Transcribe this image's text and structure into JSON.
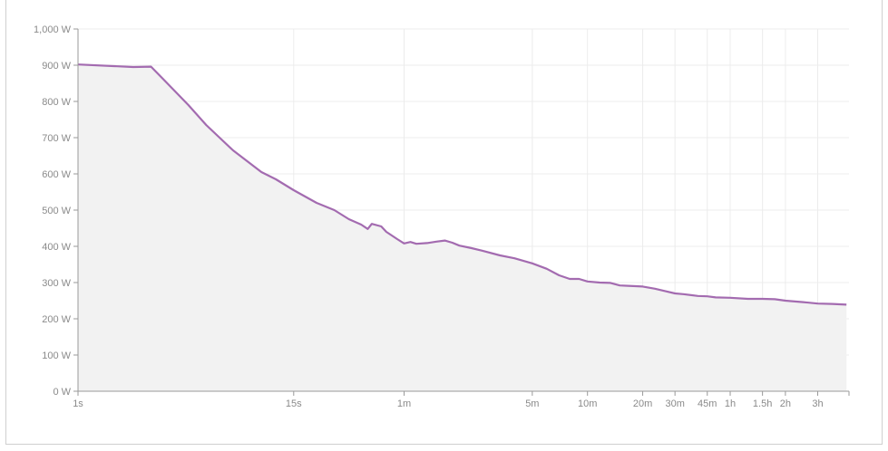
{
  "chart_data": {
    "type": "area",
    "title": "",
    "xlabel": "",
    "ylabel": "",
    "x_scale": "log",
    "ylim": [
      0,
      1000
    ],
    "xlim_seconds": [
      1,
      16000
    ],
    "y_ticks": [
      {
        "value": 0,
        "label": "0 W"
      },
      {
        "value": 100,
        "label": "100 W"
      },
      {
        "value": 200,
        "label": "200 W"
      },
      {
        "value": 300,
        "label": "300 W"
      },
      {
        "value": 400,
        "label": "400 W"
      },
      {
        "value": 500,
        "label": "500 W"
      },
      {
        "value": 600,
        "label": "600 W"
      },
      {
        "value": 700,
        "label": "700 W"
      },
      {
        "value": 800,
        "label": "800 W"
      },
      {
        "value": 900,
        "label": "900 W"
      },
      {
        "value": 1000,
        "label": "1,000 W"
      }
    ],
    "x_ticks": [
      {
        "seconds": 1,
        "label": "1s"
      },
      {
        "seconds": 15,
        "label": "15s"
      },
      {
        "seconds": 60,
        "label": "1m"
      },
      {
        "seconds": 300,
        "label": "5m"
      },
      {
        "seconds": 600,
        "label": "10m"
      },
      {
        "seconds": 1200,
        "label": "20m"
      },
      {
        "seconds": 1800,
        "label": "30m"
      },
      {
        "seconds": 2700,
        "label": "45m"
      },
      {
        "seconds": 3600,
        "label": "1h"
      },
      {
        "seconds": 5400,
        "label": "1.5h"
      },
      {
        "seconds": 7200,
        "label": "2h"
      },
      {
        "seconds": 10800,
        "label": "3h"
      }
    ],
    "series": [
      {
        "line_color": "#a36bb0",
        "fill_color": "#f2f2f2",
        "points": [
          [
            1,
            902
          ],
          [
            2,
            895
          ],
          [
            2.5,
            896
          ],
          [
            3,
            855
          ],
          [
            4,
            790
          ],
          [
            5,
            735
          ],
          [
            7,
            665
          ],
          [
            10,
            605
          ],
          [
            12,
            585
          ],
          [
            15,
            555
          ],
          [
            20,
            520
          ],
          [
            25,
            500
          ],
          [
            30,
            475
          ],
          [
            35,
            460
          ],
          [
            38,
            448
          ],
          [
            40,
            462
          ],
          [
            45,
            455
          ],
          [
            48,
            440
          ],
          [
            55,
            420
          ],
          [
            60,
            408
          ],
          [
            65,
            412
          ],
          [
            70,
            407
          ],
          [
            80,
            409
          ],
          [
            90,
            413
          ],
          [
            100,
            416
          ],
          [
            110,
            410
          ],
          [
            120,
            402
          ],
          [
            140,
            395
          ],
          [
            160,
            388
          ],
          [
            200,
            375
          ],
          [
            240,
            367
          ],
          [
            300,
            353
          ],
          [
            360,
            338
          ],
          [
            420,
            320
          ],
          [
            480,
            310
          ],
          [
            540,
            310
          ],
          [
            600,
            303
          ],
          [
            700,
            300
          ],
          [
            800,
            299
          ],
          [
            900,
            292
          ],
          [
            1000,
            291
          ],
          [
            1100,
            290
          ],
          [
            1200,
            289
          ],
          [
            1400,
            283
          ],
          [
            1600,
            276
          ],
          [
            1800,
            270
          ],
          [
            2000,
            268
          ],
          [
            2400,
            263
          ],
          [
            2700,
            262
          ],
          [
            3000,
            259
          ],
          [
            3600,
            258
          ],
          [
            4500,
            255
          ],
          [
            5400,
            255
          ],
          [
            6300,
            254
          ],
          [
            7200,
            250
          ],
          [
            9000,
            246
          ],
          [
            10800,
            242
          ],
          [
            13000,
            241
          ],
          [
            15500,
            239
          ]
        ]
      }
    ]
  }
}
